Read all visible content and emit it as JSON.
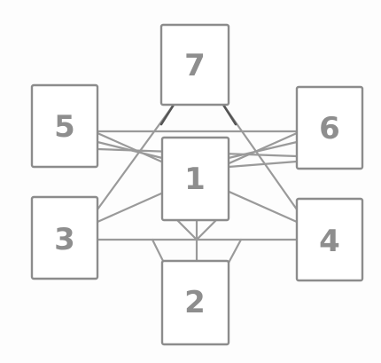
{
  "diagram": {
    "nodes": [
      {
        "id": "7",
        "label": "7"
      },
      {
        "id": "5",
        "label": "5"
      },
      {
        "id": "6",
        "label": "6"
      },
      {
        "id": "1",
        "label": "1"
      },
      {
        "id": "3",
        "label": "3"
      },
      {
        "id": "4",
        "label": "4"
      },
      {
        "id": "2",
        "label": "2"
      }
    ],
    "edges": [
      {
        "from": "5",
        "to": "6"
      },
      {
        "from": "5",
        "to": "1"
      },
      {
        "from": "5",
        "to": "4"
      },
      {
        "from": "3",
        "to": "6"
      },
      {
        "from": "3",
        "to": "4"
      },
      {
        "from": "3",
        "to": "7"
      },
      {
        "from": "7",
        "to": "4"
      },
      {
        "from": "1",
        "to": "6"
      },
      {
        "from": "1",
        "to": "2"
      },
      {
        "from": "2",
        "to": "3"
      },
      {
        "from": "2",
        "to": "4"
      }
    ],
    "colors": {
      "box_border": "#8c8c8c",
      "edge": "#9a9a9a",
      "edge_dark": "#555555",
      "label": "#8e8e8e",
      "background": "#ffffff"
    }
  }
}
